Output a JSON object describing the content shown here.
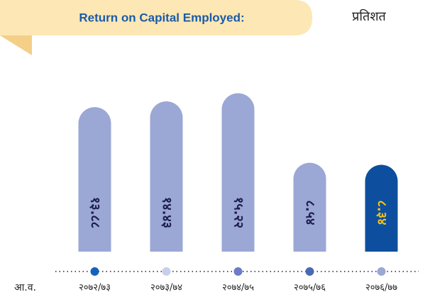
{
  "chart_data": {
    "type": "bar",
    "title": "Return on Capital Employed:",
    "unit_label": "प्रतिशत",
    "x_label": "आ.व.",
    "categories": [
      "२०७२/७३",
      "२०७३/७४",
      "२०७४/७५",
      "२०७५/७६",
      "२०७६/७७"
    ],
    "values": [
      13.88,
      14.43,
      15.22,
      8.54,
      8.34
    ],
    "value_labels": [
      "१३.८८",
      "१४.४३",
      "१५.२२",
      "८.५४",
      "८.३४"
    ],
    "colors": [
      "#9ba7d5",
      "#9ba7d5",
      "#9ba7d5",
      "#9ba7d5",
      "#0d4f9e"
    ],
    "label_colors": [
      "#1c1c4e",
      "#1c1c4e",
      "#1c1c4e",
      "#1c1c4e",
      "#f2c21b"
    ],
    "marker_colors": [
      "#1762be",
      "#c9cee8",
      "#6c7cc6",
      "#4b69b2",
      "#9ba7d5"
    ],
    "ylim": [
      0,
      16
    ]
  }
}
